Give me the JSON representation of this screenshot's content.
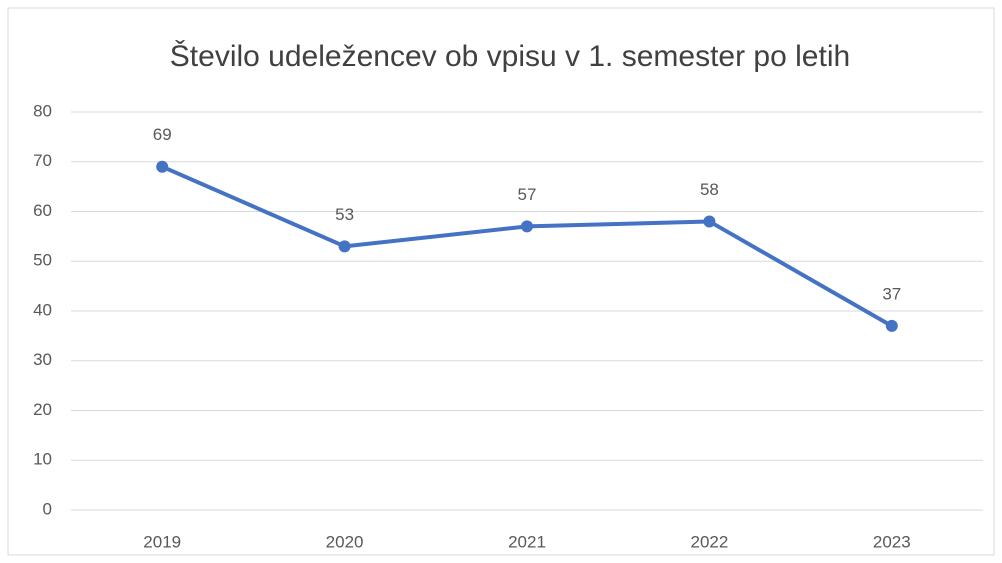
{
  "chart_data": {
    "type": "line",
    "title": "Število udeležencev ob vpisu v 1. semester po letih",
    "categories": [
      "2019",
      "2020",
      "2021",
      "2022",
      "2023"
    ],
    "values": [
      69,
      53,
      57,
      58,
      37
    ],
    "color": "#4472c4",
    "ylim": [
      0,
      80
    ],
    "yticks": [
      0,
      10,
      20,
      30,
      40,
      50,
      60,
      70,
      80
    ],
    "grid": true
  }
}
